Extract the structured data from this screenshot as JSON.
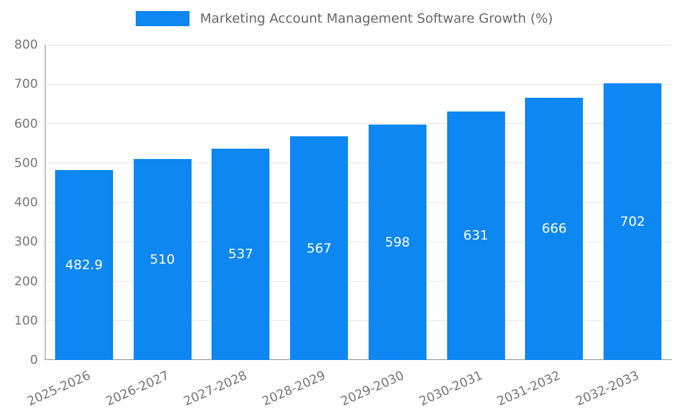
{
  "chart_data": {
    "type": "bar",
    "title": "Marketing Account Management Software Growth (%)",
    "categories": [
      "2025-2026",
      "2026-2027",
      "2027-2028",
      "2028-2029",
      "2029-2030",
      "2030-2031",
      "2031-2032",
      "2032-2033"
    ],
    "values": [
      482.9,
      510,
      537,
      567,
      598,
      631,
      666,
      702
    ],
    "value_labels": [
      "482.9",
      "510",
      "537",
      "567",
      "598",
      "631",
      "666",
      "702"
    ],
    "xlabel": "",
    "ylabel": "",
    "ylim": [
      0,
      800
    ],
    "yticks": [
      0,
      100,
      200,
      300,
      400,
      500,
      600,
      700,
      800
    ],
    "grid": true,
    "legend_position": "top-center",
    "legend_entries": [
      {
        "label": "Marketing Account Management Software Growth (%)",
        "color": "#0d87f1"
      }
    ],
    "colors": {
      "bar": "#0d87f1",
      "bar_label": "#ffffff",
      "axis_text": "#757575",
      "title_text": "#666666",
      "gridline": "#e6e6e6",
      "axis_line": "#8c8c8c",
      "background": "#ffffff"
    }
  }
}
